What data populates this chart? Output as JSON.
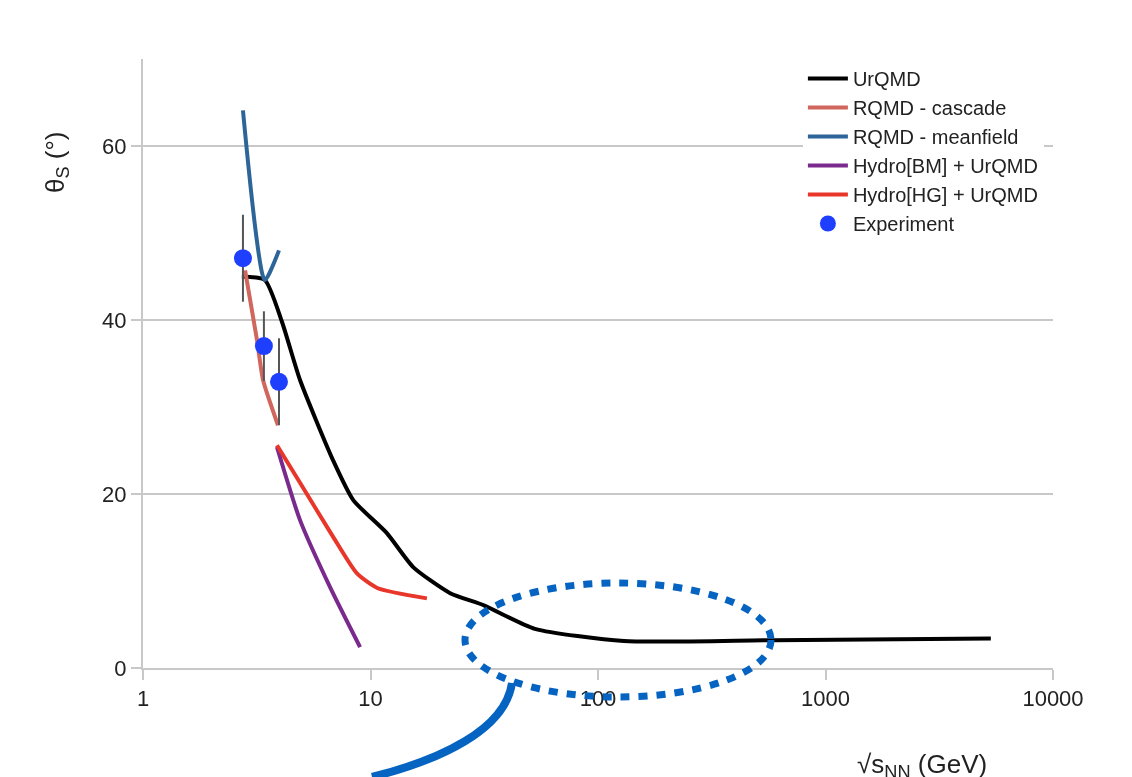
{
  "chart_data": {
    "type": "line",
    "xlabel": "√s$_{NN}$ (GeV)",
    "ylabel": "θ$_{S}$ (°)",
    "log": "x",
    "xlim": [
      1,
      10000
    ],
    "xticks": [
      1,
      10,
      100,
      1000,
      10000
    ],
    "ylim": [
      0,
      70
    ],
    "yticks": [
      0,
      20,
      40,
      60
    ],
    "grid": "y",
    "legend": "top right",
    "line_style": "solid",
    "series": [
      {
        "name": "Experiment",
        "type": "scatter",
        "marker": "circle",
        "color": "#1f3fff",
        "x": [
          2.75,
          3.4,
          3.96
        ],
        "values": [
          47.1,
          37.0,
          32.9
        ],
        "errors": [
          5,
          4,
          5
        ]
      },
      {
        "name": "UrQMD",
        "color": "#000000",
        "marker": "none",
        "x": [
          2.72,
          3.43,
          4.08,
          4.9,
          6.84,
          8.4,
          11.8,
          15.4,
          22.4,
          31.5,
          52.8,
          130,
          594,
          5330
        ],
        "values": [
          45,
          44.6,
          39.8,
          33.1,
          23.9,
          19.3,
          15.5,
          11.6,
          8.6,
          7.2,
          4.5,
          3.1,
          3.2,
          3.4
        ]
      },
      {
        "name": "RQMD - cascade",
        "color": "#d0665c",
        "marker": "none",
        "x": [
          2.81,
          3.17,
          3.37,
          3.92
        ],
        "values": [
          45.7,
          37.7,
          33.1,
          27.9
        ]
      },
      {
        "name": "RQMD - meanfield",
        "color": "#2e6599",
        "marker": "none",
        "x": [
          2.75,
          3.43,
          3.96
        ],
        "values": [
          64.1,
          44.6,
          48.0
        ]
      },
      {
        "name": "Hydro[BM] + UrQMD",
        "color": "#7a2a8c",
        "marker": "none",
        "x": [
          3.88,
          4.9,
          6.64,
          9.0
        ],
        "values": [
          25.4,
          17,
          9.3,
          2.4
        ]
      },
      {
        "name": "Hydro[HG] + UrQMD",
        "color": "#e8372a",
        "marker": "none",
        "x": [
          3.88,
          4.9,
          6.84,
          8.7,
          10.7,
          17.7
        ],
        "values": [
          25.6,
          21.3,
          15.1,
          10.9,
          9.2,
          8.0
        ]
      }
    ]
  }
}
